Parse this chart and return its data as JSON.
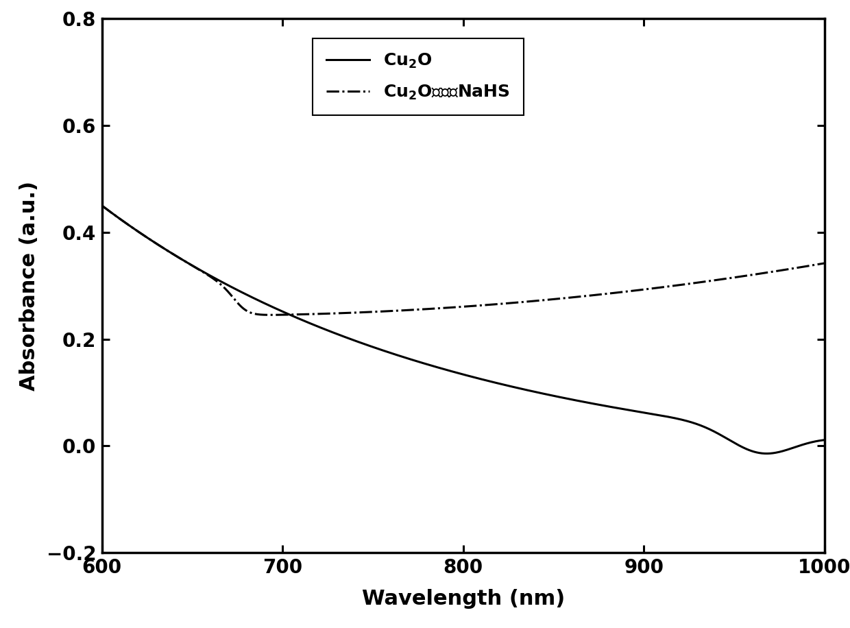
{
  "xlabel": "Wavelength (nm)",
  "ylabel": "Absorbance (a.u.)",
  "xlim": [
    600,
    1000
  ],
  "ylim": [
    -0.2,
    0.8
  ],
  "xticks": [
    600,
    700,
    800,
    900,
    1000
  ],
  "yticks": [
    -0.2,
    0.0,
    0.2,
    0.4,
    0.6,
    0.8
  ],
  "line_color": "#000000",
  "background_color": "#ffffff",
  "legend_fontsize": 18,
  "axis_fontsize": 22,
  "tick_fontsize": 20,
  "linewidth": 2.2
}
